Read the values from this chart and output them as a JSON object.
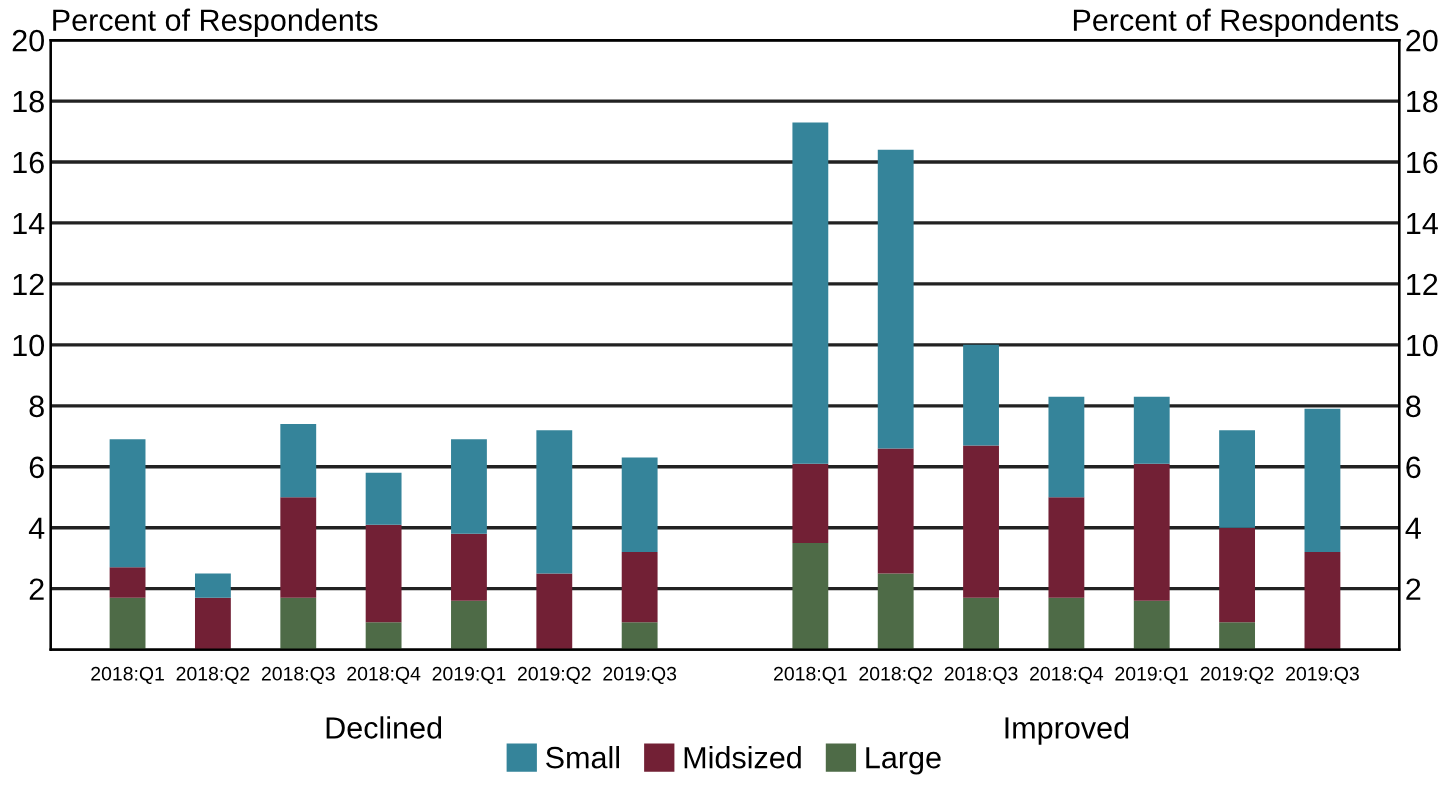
{
  "chart_data": {
    "type": "bar",
    "stacked": true,
    "categories": [
      "2018:Q1",
      "2018:Q2",
      "2018:Q3",
      "2018:Q4",
      "2019:Q1",
      "2019:Q2",
      "2019:Q3",
      null,
      "2018:Q1",
      "2018:Q2",
      "2018:Q3",
      "2018:Q4",
      "2019:Q1",
      "2019:Q2",
      "2019:Q3"
    ],
    "series": [
      {
        "name": "Large",
        "color": "#4e6b47",
        "values": [
          1.7,
          0,
          1.7,
          0.9,
          1.6,
          0,
          0.9,
          null,
          3.5,
          2.5,
          1.7,
          1.7,
          1.6,
          0.9,
          0
        ]
      },
      {
        "name": "Midsized",
        "color": "#722035",
        "values": [
          1.0,
          1.7,
          3.3,
          3.2,
          2.2,
          2.5,
          2.3,
          null,
          2.6,
          4.1,
          5.0,
          3.3,
          4.5,
          3.1,
          3.2
        ]
      },
      {
        "name": "Small",
        "color": "#35849a",
        "values": [
          4.2,
          0.8,
          2.4,
          1.7,
          3.1,
          4.7,
          3.1,
          null,
          11.2,
          9.8,
          3.3,
          3.3,
          2.2,
          3.2,
          4.7
        ]
      }
    ],
    "ylabel": "Percent of Respondents",
    "y2label": "Percent of Respondents",
    "ylim": [
      0,
      20
    ],
    "yticks": [
      2,
      4,
      6,
      8,
      10,
      12,
      14,
      16,
      18,
      20
    ],
    "y2lim": [
      0,
      20
    ],
    "y2ticks": [
      2,
      4,
      6,
      8,
      10,
      12,
      14,
      16,
      18,
      20
    ],
    "annotations": [
      "Declined",
      "Improved"
    ],
    "grid": "y",
    "legend": "bottom"
  }
}
